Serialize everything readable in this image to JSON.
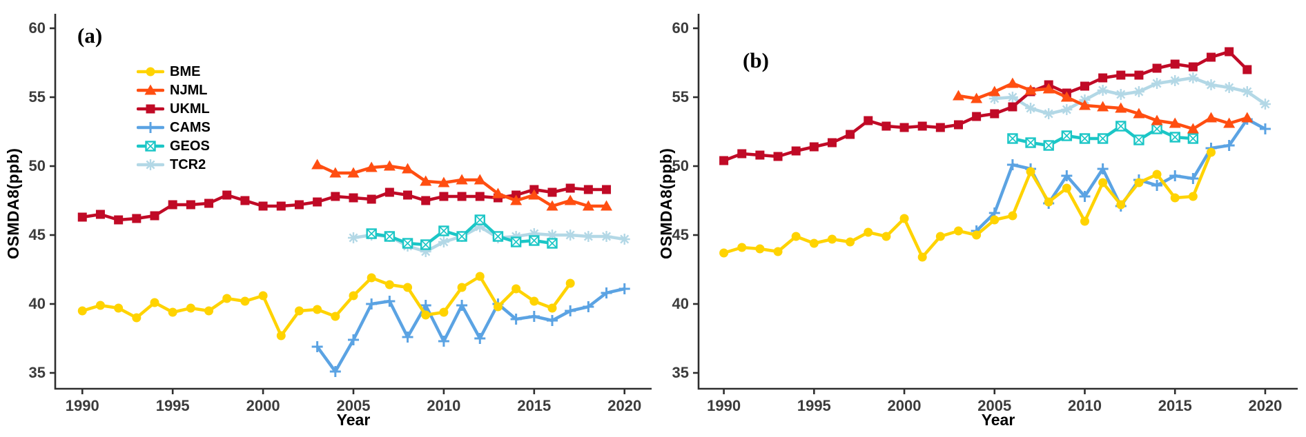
{
  "figure": {
    "legend": [
      {
        "label": "BME",
        "marker": "circle-marker",
        "color": "#FFD300"
      },
      {
        "label": "NJML",
        "marker": "triangle-marker",
        "color": "#FF4E11"
      },
      {
        "label": "UKML",
        "marker": "square-marker",
        "color": "#C00A26"
      },
      {
        "label": "CAMS",
        "marker": "plus-marker",
        "color": "#5BA3E3"
      },
      {
        "label": "GEOS",
        "marker": "crossed-square-marker",
        "color": "#1BC6C6"
      },
      {
        "label": "TCR2",
        "marker": "asterisk-marker",
        "color": "#B3D8E6"
      }
    ]
  },
  "chart_data": [
    {
      "type": "line",
      "tag": "(a)",
      "xlabel": "Year",
      "ylabel": "OSMDA8(ppb)",
      "x_ticks": [
        1990,
        1995,
        2000,
        2005,
        2010,
        2015,
        2020
      ],
      "y_ticks": [
        35,
        40,
        45,
        50,
        55,
        60
      ],
      "xlim": [
        1988.5,
        2021.5
      ],
      "ylim": [
        33.85,
        61.05
      ],
      "grid": false,
      "legend_position": "upper-left-inside",
      "series": [
        {
          "name": "CAMS",
          "color": "#5BA3E3",
          "marker": "plus",
          "start": 2003,
          "values": [
            36.9,
            35.1,
            37.4,
            40.0,
            40.2,
            37.6,
            39.9,
            37.3,
            39.9,
            37.5,
            40.0,
            38.9,
            39.1,
            38.8,
            39.5,
            39.8,
            40.8,
            41.1
          ]
        },
        {
          "name": "BME",
          "color": "#FFD300",
          "marker": "circle",
          "start": 1990,
          "values": [
            39.5,
            39.9,
            39.7,
            39.0,
            40.1,
            39.4,
            39.7,
            39.5,
            40.4,
            40.2,
            40.6,
            37.7,
            39.5,
            39.6,
            39.1,
            40.6,
            41.9,
            41.4,
            41.2,
            39.2,
            39.4,
            41.2,
            42.0,
            39.8,
            41.1,
            40.2,
            39.7,
            41.5
          ]
        },
        {
          "name": "TCR2",
          "color": "#B3D8E6",
          "marker": "asterisk",
          "start": 2005,
          "values": [
            44.8,
            45.0,
            44.9,
            44.2,
            43.8,
            44.5,
            44.9,
            45.6,
            44.8,
            44.9,
            45.1,
            45.0,
            45.0,
            44.9,
            44.9,
            44.7
          ]
        },
        {
          "name": "GEOS",
          "color": "#1BC6C6",
          "marker": "squarex",
          "start": 2006,
          "values": [
            45.1,
            44.9,
            44.4,
            44.3,
            45.3,
            44.9,
            46.1,
            44.9,
            44.5,
            44.6,
            44.4
          ]
        },
        {
          "name": "UKML",
          "color": "#C00A26",
          "marker": "square",
          "start": 1990,
          "values": [
            46.3,
            46.5,
            46.1,
            46.2,
            46.4,
            47.2,
            47.2,
            47.3,
            47.9,
            47.5,
            47.1,
            47.1,
            47.2,
            47.4,
            47.8,
            47.7,
            47.6,
            48.1,
            47.9,
            47.5,
            47.8,
            47.8,
            47.8,
            47.7,
            47.9,
            48.3,
            48.1,
            48.4,
            48.3,
            48.3
          ]
        },
        {
          "name": "NJML",
          "color": "#FF4E11",
          "marker": "triangle",
          "start": 2003,
          "values": [
            50.1,
            49.5,
            49.5,
            49.9,
            50.0,
            49.8,
            48.9,
            48.8,
            49.0,
            49.0,
            48.0,
            47.5,
            47.9,
            47.1,
            47.5,
            47.1,
            47.1
          ]
        }
      ]
    },
    {
      "type": "line",
      "tag": "(b)",
      "xlabel": "Year",
      "ylabel": "OSMDA8(ppb)",
      "x_ticks": [
        1990,
        1995,
        2000,
        2005,
        2010,
        2015,
        2020
      ],
      "y_ticks": [
        35,
        40,
        45,
        50,
        55,
        60
      ],
      "xlim": [
        1988.6,
        2021.8
      ],
      "ylim": [
        33.85,
        61.05
      ],
      "grid": false,
      "legend_position": "none",
      "series": [
        {
          "name": "CAMS",
          "color": "#5BA3E3",
          "marker": "plus",
          "start": 2004,
          "values": [
            45.3,
            46.6,
            50.1,
            49.8,
            47.3,
            49.3,
            47.8,
            49.8,
            47.1,
            49.0,
            48.6,
            49.3,
            49.1,
            51.3,
            51.5,
            53.4,
            52.7
          ]
        },
        {
          "name": "BME",
          "color": "#FFD300",
          "marker": "circle",
          "start": 1990,
          "values": [
            43.7,
            44.1,
            44.0,
            43.8,
            44.9,
            44.4,
            44.7,
            44.5,
            45.2,
            44.9,
            46.2,
            43.4,
            44.9,
            45.3,
            45.0,
            46.1,
            46.4,
            49.6,
            47.4,
            48.4,
            46.0,
            48.8,
            47.2,
            48.8,
            49.4,
            47.7,
            47.8,
            51.0
          ]
        },
        {
          "name": "TCR2",
          "color": "#B3D8E6",
          "marker": "asterisk",
          "start": 2005,
          "values": [
            54.9,
            55.0,
            54.2,
            53.8,
            54.1,
            54.8,
            55.5,
            55.2,
            55.4,
            56.0,
            56.2,
            56.4,
            55.9,
            55.7,
            55.4,
            54.5
          ]
        },
        {
          "name": "GEOS",
          "color": "#1BC6C6",
          "marker": "squarex",
          "start": 2006,
          "values": [
            52.0,
            51.7,
            51.5,
            52.2,
            52.0,
            52.0,
            52.9,
            51.9,
            52.7,
            52.1,
            52.0
          ]
        },
        {
          "name": "UKML",
          "color": "#C00A26",
          "marker": "square",
          "start": 1990,
          "values": [
            50.4,
            50.9,
            50.8,
            50.7,
            51.1,
            51.4,
            51.7,
            52.3,
            53.3,
            52.9,
            52.8,
            52.9,
            52.8,
            53.0,
            53.6,
            53.8,
            54.3,
            55.4,
            55.9,
            55.3,
            55.8,
            56.4,
            56.6,
            56.6,
            57.1,
            57.4,
            57.2,
            57.9,
            58.3,
            57.0
          ]
        },
        {
          "name": "NJML",
          "color": "#FF4E11",
          "marker": "triangle",
          "start": 2003,
          "values": [
            55.1,
            54.9,
            55.4,
            56.0,
            55.5,
            55.6,
            55.0,
            54.4,
            54.3,
            54.2,
            53.8,
            53.3,
            53.1,
            52.7,
            53.5,
            53.1,
            53.5
          ]
        }
      ]
    }
  ]
}
